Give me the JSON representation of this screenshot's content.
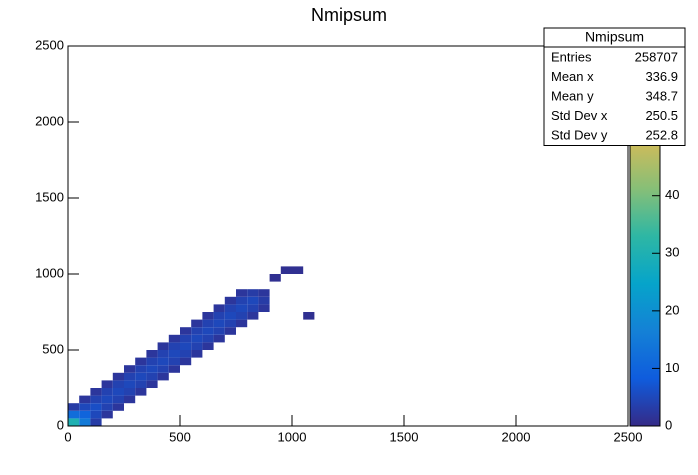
{
  "chart_data": {
    "type": "heatmap",
    "title": "Nmipsum",
    "xlim": [
      0,
      2500
    ],
    "xticks": [
      0,
      500,
      1000,
      1500,
      2000,
      2500
    ],
    "ylim": [
      0,
      2500
    ],
    "yticks": [
      0,
      500,
      1000,
      1500,
      2000,
      2500
    ],
    "zlim": [
      0,
      66
    ],
    "zticks": [
      0,
      10,
      20,
      30,
      40
    ],
    "palette": [
      "#352a87",
      "#0f5cdd",
      "#1481d6",
      "#06a4ca",
      "#2eb7a4",
      "#87bf77",
      "#d1bb59",
      "#fec832",
      "#f9fb0e"
    ],
    "xbins": [
      0,
      50,
      100,
      150,
      200,
      250,
      300,
      350,
      400,
      450,
      500,
      550,
      600,
      650,
      700,
      750,
      800,
      850,
      900,
      950,
      1000,
      1050,
      1100
    ],
    "ybins": [
      0,
      50,
      100,
      150,
      200,
      250,
      300,
      350,
      400,
      450,
      500,
      550,
      600,
      650,
      700,
      750,
      800,
      850,
      900,
      950,
      1000,
      1050,
      1100
    ],
    "cells": [
      [
        0,
        0,
        30
      ],
      [
        0,
        50,
        12
      ],
      [
        0,
        100,
        3
      ],
      [
        50,
        0,
        15
      ],
      [
        50,
        50,
        10
      ],
      [
        50,
        100,
        5
      ],
      [
        50,
        150,
        2
      ],
      [
        100,
        0,
        3
      ],
      [
        100,
        50,
        5
      ],
      [
        100,
        100,
        6
      ],
      [
        100,
        150,
        4
      ],
      [
        100,
        200,
        2
      ],
      [
        150,
        50,
        2
      ],
      [
        150,
        100,
        4
      ],
      [
        150,
        150,
        5
      ],
      [
        150,
        200,
        4
      ],
      [
        150,
        250,
        2
      ],
      [
        200,
        100,
        2
      ],
      [
        200,
        150,
        4
      ],
      [
        200,
        200,
        5
      ],
      [
        200,
        250,
        4
      ],
      [
        200,
        300,
        2
      ],
      [
        250,
        150,
        2
      ],
      [
        250,
        200,
        4
      ],
      [
        250,
        250,
        5
      ],
      [
        250,
        300,
        4
      ],
      [
        250,
        350,
        2
      ],
      [
        300,
        200,
        2
      ],
      [
        300,
        250,
        4
      ],
      [
        300,
        300,
        5
      ],
      [
        300,
        350,
        4
      ],
      [
        300,
        400,
        2
      ],
      [
        350,
        250,
        2
      ],
      [
        350,
        300,
        4
      ],
      [
        350,
        350,
        5
      ],
      [
        350,
        400,
        4
      ],
      [
        350,
        450,
        2
      ],
      [
        400,
        300,
        2
      ],
      [
        400,
        350,
        4
      ],
      [
        400,
        400,
        5
      ],
      [
        400,
        450,
        4
      ],
      [
        400,
        500,
        2
      ],
      [
        450,
        350,
        2
      ],
      [
        450,
        400,
        4
      ],
      [
        450,
        450,
        5
      ],
      [
        450,
        500,
        4
      ],
      [
        450,
        550,
        2
      ],
      [
        500,
        400,
        2
      ],
      [
        500,
        450,
        4
      ],
      [
        500,
        500,
        5
      ],
      [
        500,
        550,
        4
      ],
      [
        500,
        600,
        2
      ],
      [
        550,
        450,
        2
      ],
      [
        550,
        500,
        4
      ],
      [
        550,
        550,
        5
      ],
      [
        550,
        600,
        4
      ],
      [
        550,
        650,
        2
      ],
      [
        600,
        500,
        2
      ],
      [
        600,
        550,
        4
      ],
      [
        600,
        600,
        5
      ],
      [
        600,
        650,
        4
      ],
      [
        600,
        700,
        2
      ],
      [
        650,
        550,
        2
      ],
      [
        650,
        600,
        4
      ],
      [
        650,
        650,
        5
      ],
      [
        650,
        700,
        4
      ],
      [
        650,
        750,
        2
      ],
      [
        700,
        600,
        2
      ],
      [
        700,
        650,
        4
      ],
      [
        700,
        700,
        5
      ],
      [
        700,
        750,
        4
      ],
      [
        700,
        800,
        2
      ],
      [
        750,
        650,
        2
      ],
      [
        750,
        700,
        4
      ],
      [
        750,
        750,
        5
      ],
      [
        750,
        800,
        4
      ],
      [
        750,
        850,
        2
      ],
      [
        800,
        700,
        2
      ],
      [
        800,
        750,
        4
      ],
      [
        800,
        800,
        5
      ],
      [
        800,
        850,
        3
      ],
      [
        850,
        750,
        2
      ],
      [
        850,
        800,
        3
      ],
      [
        850,
        850,
        2
      ],
      [
        900,
        950,
        1
      ],
      [
        950,
        1000,
        1
      ],
      [
        1050,
        700,
        1
      ],
      [
        1000,
        1000,
        1
      ]
    ],
    "stats": {
      "title": "Nmipsum",
      "rows": [
        [
          "Entries",
          258707
        ],
        [
          "Mean x",
          336.9
        ],
        [
          "Mean y",
          348.7
        ],
        [
          "Std Dev x",
          250.5
        ],
        [
          "Std Dev y",
          252.8
        ]
      ]
    }
  }
}
